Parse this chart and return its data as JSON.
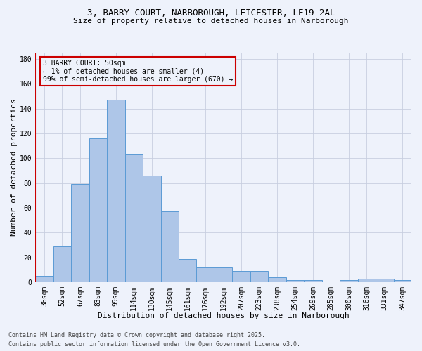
{
  "title_line1": "3, BARRY COURT, NARBOROUGH, LEICESTER, LE19 2AL",
  "title_line2": "Size of property relative to detached houses in Narborough",
  "xlabel": "Distribution of detached houses by size in Narborough",
  "ylabel": "Number of detached properties",
  "bar_labels": [
    "36sqm",
    "52sqm",
    "67sqm",
    "83sqm",
    "99sqm",
    "114sqm",
    "130sqm",
    "145sqm",
    "161sqm",
    "176sqm",
    "192sqm",
    "207sqm",
    "223sqm",
    "238sqm",
    "254sqm",
    "269sqm",
    "285sqm",
    "300sqm",
    "316sqm",
    "331sqm",
    "347sqm"
  ],
  "bar_values": [
    5,
    29,
    79,
    116,
    147,
    103,
    86,
    57,
    19,
    12,
    12,
    9,
    9,
    4,
    2,
    2,
    0,
    2,
    3,
    3,
    2
  ],
  "bar_color": "#aec6e8",
  "bar_edge_color": "#5b9bd5",
  "highlight_line_color": "#cc0000",
  "ylim": [
    0,
    185
  ],
  "yticks": [
    0,
    20,
    40,
    60,
    80,
    100,
    120,
    140,
    160,
    180
  ],
  "annotation_title": "3 BARRY COURT: 50sqm",
  "annotation_line1": "← 1% of detached houses are smaller (4)",
  "annotation_line2": "99% of semi-detached houses are larger (670) →",
  "annotation_box_color": "#cc0000",
  "background_color": "#eef2fb",
  "grid_color": "#c8cfe0",
  "footnote1": "Contains HM Land Registry data © Crown copyright and database right 2025.",
  "footnote2": "Contains public sector information licensed under the Open Government Licence v3.0.",
  "title1_fontsize": 9,
  "title2_fontsize": 8,
  "tick_fontsize": 7,
  "ylabel_fontsize": 8,
  "xlabel_fontsize": 8,
  "annot_fontsize": 7,
  "footnote_fontsize": 6
}
